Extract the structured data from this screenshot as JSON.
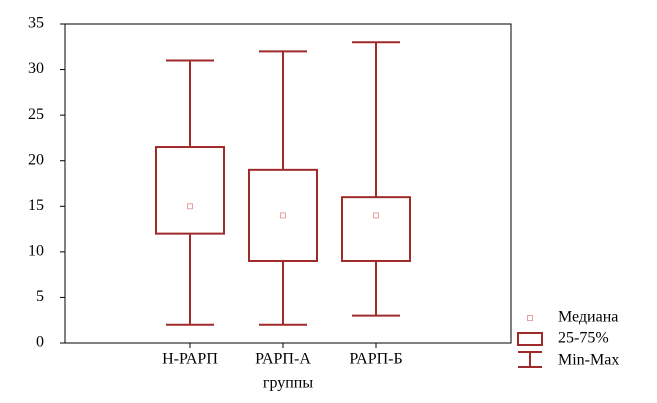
{
  "chart_data": {
    "type": "boxplot",
    "categories": [
      "Н-РАРП",
      "РАРП-А",
      "РАРП-Б"
    ],
    "x_label": "группы",
    "min": [
      2,
      2,
      3
    ],
    "q1": [
      12,
      9,
      9
    ],
    "median": [
      15,
      14,
      14
    ],
    "q3": [
      21.5,
      19,
      16
    ],
    "max": [
      31,
      32,
      33
    ],
    "color": "#9e2a2a",
    "median_color": "#e8a0a0",
    "ylim": [
      0,
      35
    ],
    "yticks": [
      0,
      5,
      10,
      15,
      20,
      25,
      30,
      35
    ],
    "legend": {
      "position": "lower right",
      "median": "Медиана",
      "box": "25-75%",
      "whisker": "Min-Max"
    }
  }
}
